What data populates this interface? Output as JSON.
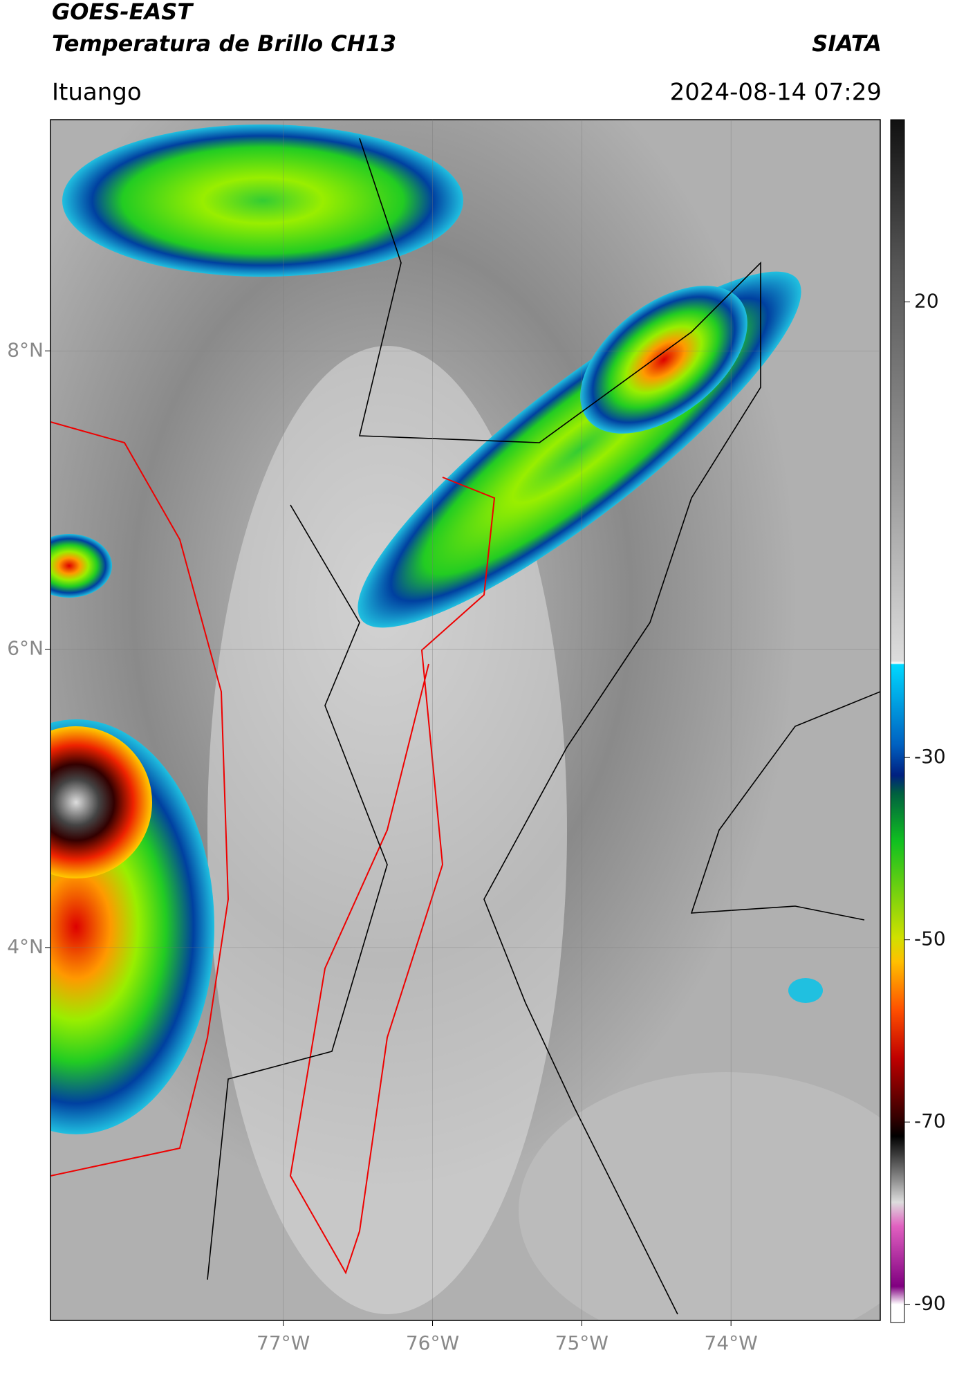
{
  "header": {
    "title": "GOES-EAST",
    "subtitle": "Temperatura de Brillo CH13",
    "brand": "SIATA",
    "location": "Ituango",
    "datetime": "2024-08-14 07:29"
  },
  "map": {
    "lat_range": [
      1.5,
      9.55
    ],
    "lon_range": [
      -78.56,
      -73.0
    ],
    "lat_ticks": [
      {
        "value": 8,
        "label": "8°N"
      },
      {
        "value": 6,
        "label": "6°N"
      },
      {
        "value": 4,
        "label": "4°N"
      }
    ],
    "lon_ticks": [
      {
        "value": -77,
        "label": "77°W"
      },
      {
        "value": -76,
        "label": "76°W"
      },
      {
        "value": -75,
        "label": "75°W"
      },
      {
        "value": -74,
        "label": "74°W"
      }
    ],
    "grid": true
  },
  "colorbar": {
    "range": [
      -92,
      40
    ],
    "ticks": [
      20,
      -30,
      -50,
      -70,
      -90
    ]
  }
}
